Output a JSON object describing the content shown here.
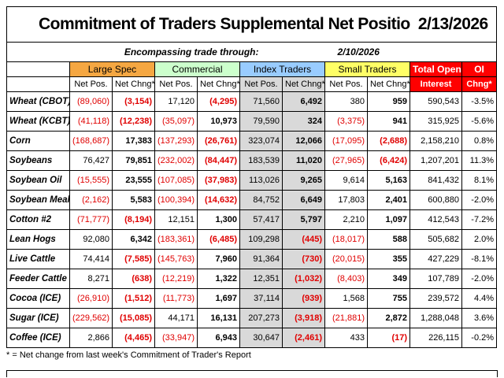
{
  "header": {
    "title": "Commitment of Traders Supplemental Net Positions -",
    "date": "2/13/2026",
    "subtitle": "Encompassing trade through:",
    "through_date": "2/10/2026"
  },
  "table": {
    "groups": [
      "Large Spec",
      "Commercial",
      "Index Traders",
      "Small Traders",
      "Total Open",
      "OI"
    ],
    "subheaders": [
      "Net Pos.",
      "Net Chng*",
      "Net Pos.",
      "Net Chng*",
      "Net Pos.",
      "Net Chng*",
      "Net Pos.",
      "Net Chng*",
      "Interest",
      "Chng*"
    ],
    "rows": [
      {
        "label": "Wheat (CBOT)",
        "values": [
          "(89,060)",
          "(3,154)",
          "17,120",
          "(4,295)",
          "71,560",
          "6,492",
          "380",
          "959",
          "590,543",
          "-3.5%"
        ]
      },
      {
        "label": "Wheat (KCBT)",
        "values": [
          "(41,118)",
          "(12,238)",
          "(35,097)",
          "10,973",
          "79,590",
          "324",
          "(3,375)",
          "941",
          "315,925",
          "-5.6%"
        ]
      },
      {
        "label": "Corn",
        "values": [
          "(168,687)",
          "17,383",
          "(137,293)",
          "(26,761)",
          "323,074",
          "12,066",
          "(17,095)",
          "(2,688)",
          "2,158,210",
          "0.8%"
        ]
      },
      {
        "label": "Soybeans",
        "values": [
          "76,427",
          "79,851",
          "(232,002)",
          "(84,447)",
          "183,539",
          "11,020",
          "(27,965)",
          "(6,424)",
          "1,207,201",
          "11.3%"
        ]
      },
      {
        "label": "Soybean Oil",
        "values": [
          "(15,555)",
          "23,555",
          "(107,085)",
          "(37,983)",
          "113,026",
          "9,265",
          "9,614",
          "5,163",
          "841,432",
          "8.1%"
        ]
      },
      {
        "label": "Soybean Meal",
        "values": [
          "(2,162)",
          "5,583",
          "(100,394)",
          "(14,632)",
          "84,752",
          "6,649",
          "17,803",
          "2,401",
          "600,880",
          "-2.0%"
        ]
      },
      {
        "label": "Cotton #2",
        "values": [
          "(71,777)",
          "(8,194)",
          "12,151",
          "1,300",
          "57,417",
          "5,797",
          "2,210",
          "1,097",
          "412,543",
          "-7.2%"
        ]
      },
      {
        "label": "Lean Hogs",
        "values": [
          "92,080",
          "6,342",
          "(183,361)",
          "(6,485)",
          "109,298",
          "(445)",
          "(18,017)",
          "588",
          "505,682",
          "2.0%"
        ]
      },
      {
        "label": "Live Cattle",
        "values": [
          "74,414",
          "(7,585)",
          "(145,763)",
          "7,960",
          "91,364",
          "(730)",
          "(20,015)",
          "355",
          "427,229",
          "-8.1%"
        ]
      },
      {
        "label": "Feeder Cattle",
        "values": [
          "8,271",
          "(638)",
          "(12,219)",
          "1,322",
          "12,351",
          "(1,032)",
          "(8,403)",
          "349",
          "107,789",
          "-2.0%"
        ]
      },
      {
        "label": "Cocoa (ICE)",
        "values": [
          "(26,910)",
          "(1,512)",
          "(11,773)",
          "1,697",
          "37,114",
          "(939)",
          "1,568",
          "755",
          "239,572",
          "4.4%"
        ]
      },
      {
        "label": "Sugar (ICE)",
        "values": [
          "(229,562)",
          "(15,085)",
          "44,171",
          "16,131",
          "207,273",
          "(3,918)",
          "(21,881)",
          "2,872",
          "1,288,048",
          "3.6%"
        ]
      },
      {
        "label": "Coffee (ICE)",
        "values": [
          "2,866",
          "(4,465)",
          "(33,947)",
          "6,943",
          "30,647",
          "(2,461)",
          "433",
          "(17)",
          "226,115",
          "-0.2%"
        ]
      }
    ]
  },
  "footnote": "* = Net change from last week's Commitment of Trader's Report"
}
